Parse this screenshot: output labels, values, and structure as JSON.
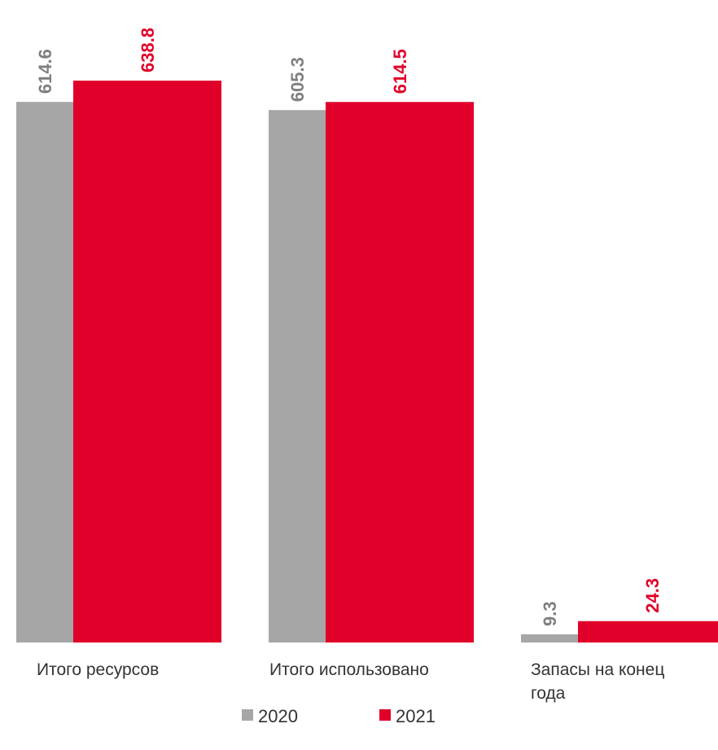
{
  "chart_data": {
    "type": "bar",
    "categories": [
      [
        "Итого ресурсов"
      ],
      [
        "Итого использовано"
      ],
      [
        "Запасы на конец",
        "года"
      ]
    ],
    "series": [
      {
        "name": "2020",
        "color": "#a6a6a6",
        "label_color": "#7f7f7f",
        "values": [
          614.6,
          605.3,
          9.3
        ]
      },
      {
        "name": "2021",
        "color": "#e0002a",
        "label_color": "#e0002a",
        "values": [
          638.8,
          614.5,
          24.3
        ]
      }
    ],
    "value_labels": [
      [
        "614.6",
        "605.3",
        "9.3"
      ],
      [
        "638.8",
        "614.5",
        "24.3"
      ]
    ],
    "ylim": [
      0,
      638.8
    ],
    "grid": false,
    "legend_position": "bottom-center"
  }
}
